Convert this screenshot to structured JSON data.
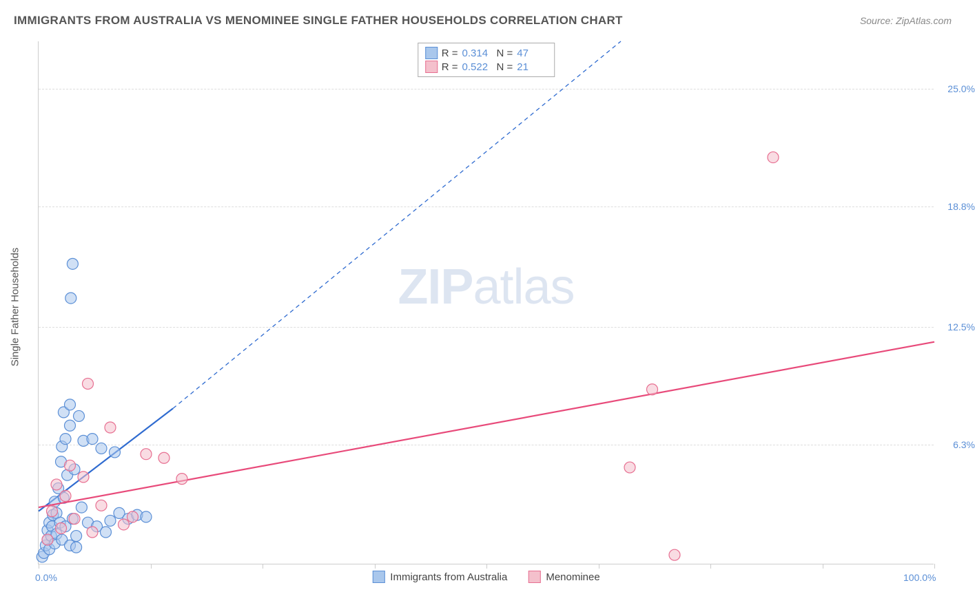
{
  "title": "IMMIGRANTS FROM AUSTRALIA VS MENOMINEE SINGLE FATHER HOUSEHOLDS CORRELATION CHART",
  "source": "Source: ZipAtlas.com",
  "watermark_bold": "ZIP",
  "watermark_rest": "atlas",
  "y_axis_label": "Single Father Households",
  "chart": {
    "type": "scatter",
    "background_color": "#ffffff",
    "grid_color": "#dddddd",
    "axis_color": "#cccccc",
    "tick_label_color": "#5b8fd6",
    "xlim": [
      0,
      100
    ],
    "ylim": [
      0,
      27.5
    ],
    "x_tick_positions": [
      0,
      12.5,
      25,
      37.5,
      50,
      62.5,
      75,
      87.5,
      100
    ],
    "x_tick_labels": {
      "0": "0.0%",
      "100": "100.0%"
    },
    "y_grid_positions": [
      6.3,
      12.5,
      18.8,
      25.0
    ],
    "y_tick_labels": [
      "6.3%",
      "12.5%",
      "18.8%",
      "25.0%"
    ],
    "series": [
      {
        "id": "series1",
        "legend_label": "Immigrants from Australia",
        "r_label": "R =",
        "r_value": "0.314",
        "n_label": "N =",
        "n_value": "47",
        "fill_color": "#a9c7ec",
        "stroke_color": "#5b8fd6",
        "fill_opacity": 0.55,
        "marker_radius": 8,
        "line_color": "#2f6bd0",
        "line_width": 2.2,
        "trend_solid": {
          "x1": 0,
          "y1": 2.8,
          "x2": 15,
          "y2": 8.2
        },
        "trend_dashed": {
          "x1": 15,
          "y1": 8.2,
          "x2": 65,
          "y2": 27.5
        },
        "points": [
          [
            0.4,
            0.4
          ],
          [
            0.6,
            0.6
          ],
          [
            0.8,
            1.0
          ],
          [
            1.0,
            1.3
          ],
          [
            1.0,
            1.8
          ],
          [
            1.2,
            0.8
          ],
          [
            1.2,
            2.2
          ],
          [
            1.4,
            1.5
          ],
          [
            1.5,
            2.0
          ],
          [
            1.6,
            2.6
          ],
          [
            1.8,
            1.1
          ],
          [
            1.8,
            3.3
          ],
          [
            2.0,
            2.7
          ],
          [
            2.0,
            1.6
          ],
          [
            2.2,
            4.0
          ],
          [
            2.4,
            2.2
          ],
          [
            2.5,
            5.4
          ],
          [
            2.6,
            1.3
          ],
          [
            2.6,
            6.2
          ],
          [
            2.8,
            3.5
          ],
          [
            3.0,
            2.0
          ],
          [
            3.0,
            6.6
          ],
          [
            3.2,
            4.7
          ],
          [
            3.5,
            1.0
          ],
          [
            3.5,
            7.3
          ],
          [
            3.8,
            2.4
          ],
          [
            4.0,
            5.0
          ],
          [
            4.2,
            1.5
          ],
          [
            4.5,
            7.8
          ],
          [
            4.8,
            3.0
          ],
          [
            5.0,
            6.5
          ],
          [
            5.5,
            2.2
          ],
          [
            6.0,
            6.6
          ],
          [
            6.5,
            2.0
          ],
          [
            7.0,
            6.1
          ],
          [
            7.5,
            1.7
          ],
          [
            8.0,
            2.3
          ],
          [
            8.5,
            5.9
          ],
          [
            9.0,
            2.7
          ],
          [
            10.0,
            2.4
          ],
          [
            11.0,
            2.6
          ],
          [
            12.0,
            2.5
          ],
          [
            2.8,
            8.0
          ],
          [
            3.5,
            8.4
          ],
          [
            3.8,
            15.8
          ],
          [
            3.6,
            14.0
          ],
          [
            4.2,
            0.9
          ]
        ]
      },
      {
        "id": "series2",
        "legend_label": "Menominee",
        "r_label": "R =",
        "r_value": "0.522",
        "n_label": "N =",
        "n_value": "21",
        "fill_color": "#f4c0cc",
        "stroke_color": "#e76f91",
        "fill_opacity": 0.55,
        "marker_radius": 8,
        "line_color": "#e84a7a",
        "line_width": 2.2,
        "trend_solid": {
          "x1": 0,
          "y1": 3.0,
          "x2": 100,
          "y2": 11.7
        },
        "trend_dashed": null,
        "points": [
          [
            1.0,
            1.3
          ],
          [
            1.5,
            2.8
          ],
          [
            2.0,
            4.2
          ],
          [
            2.5,
            1.9
          ],
          [
            3.0,
            3.6
          ],
          [
            3.5,
            5.2
          ],
          [
            4.0,
            2.4
          ],
          [
            5.0,
            4.6
          ],
          [
            5.5,
            9.5
          ],
          [
            6.0,
            1.7
          ],
          [
            7.0,
            3.1
          ],
          [
            8.0,
            7.2
          ],
          [
            9.5,
            2.1
          ],
          [
            10.5,
            2.5
          ],
          [
            12.0,
            5.8
          ],
          [
            14.0,
            5.6
          ],
          [
            16.0,
            4.5
          ],
          [
            66.0,
            5.1
          ],
          [
            68.5,
            9.2
          ],
          [
            71.0,
            0.5
          ],
          [
            82.0,
            21.4
          ]
        ]
      }
    ]
  }
}
